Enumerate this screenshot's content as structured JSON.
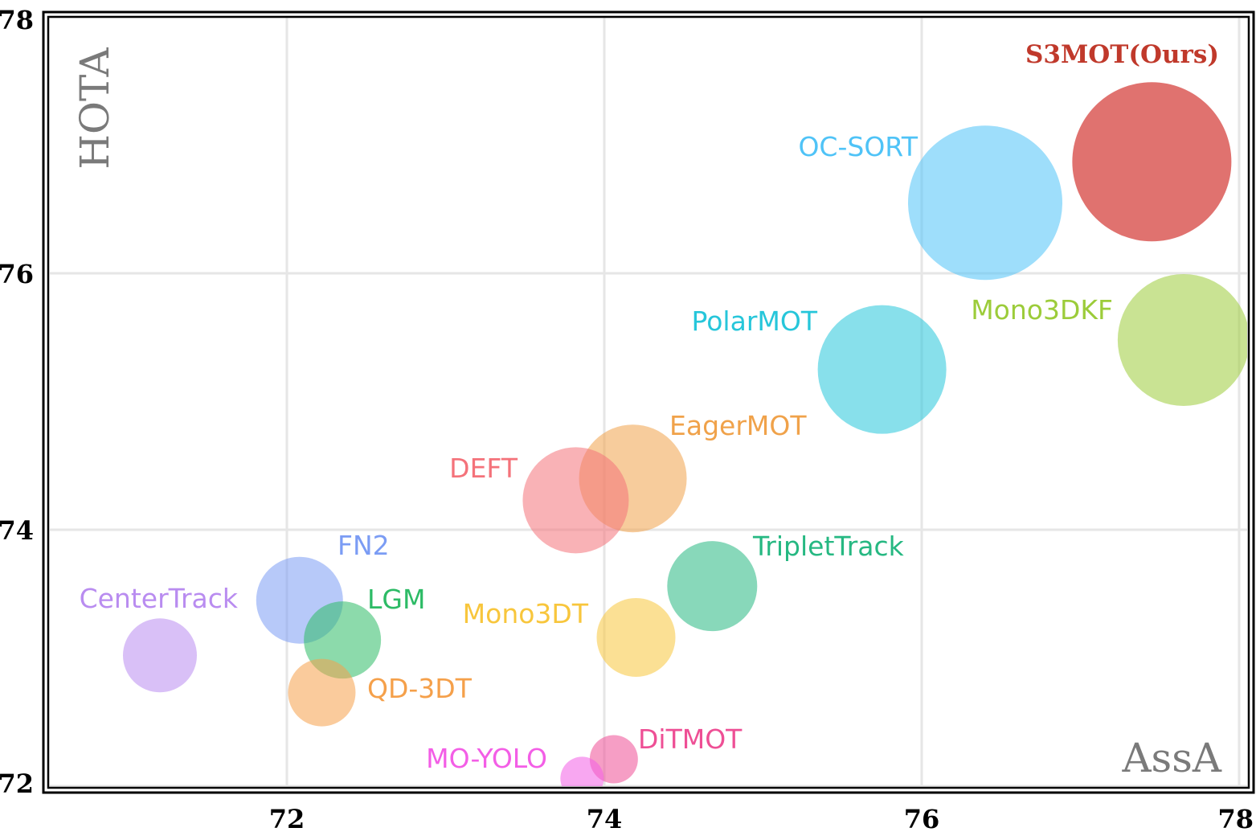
{
  "chart_data": {
    "type": "scatter",
    "title": "",
    "xlabel": "AssA",
    "ylabel": "HOTA",
    "xlim": [
      70.5,
      78
    ],
    "ylim": [
      72,
      78
    ],
    "xticks": [
      72,
      74,
      76,
      78
    ],
    "yticks": [
      72,
      74,
      76,
      78
    ],
    "grid": true,
    "legend": "none",
    "points": [
      {
        "name": "S3MOT(Ours)",
        "x": 77.45,
        "y": 76.87,
        "color": "#d9534f",
        "bold": true
      },
      {
        "name": "OC-SORT",
        "x": 76.4,
        "y": 76.55,
        "color": "#4fc3f7"
      },
      {
        "name": "Mono3DKF",
        "x": 77.65,
        "y": 75.48,
        "color": "#9ccc3a"
      },
      {
        "name": "PolarMOT",
        "x": 75.75,
        "y": 75.25,
        "color": "#26c6da"
      },
      {
        "name": "EagerMOT",
        "x": 74.18,
        "y": 74.4,
        "color": "#f0a24a"
      },
      {
        "name": "DEFT",
        "x": 73.82,
        "y": 74.23,
        "color": "#f4727a"
      },
      {
        "name": "TripletTrack",
        "x": 74.68,
        "y": 73.56,
        "color": "#26b882"
      },
      {
        "name": "FN2",
        "x": 72.08,
        "y": 73.45,
        "color": "#7b9cf4"
      },
      {
        "name": "LGM",
        "x": 72.35,
        "y": 73.14,
        "color": "#2dbb66"
      },
      {
        "name": "Mono3DT",
        "x": 74.2,
        "y": 73.16,
        "color": "#f8c63c"
      },
      {
        "name": "CenterTrack",
        "x": 71.2,
        "y": 73.02,
        "color": "#b98cf0"
      },
      {
        "name": "QD-3DT",
        "x": 72.22,
        "y": 72.73,
        "color": "#f5a04a"
      },
      {
        "name": "DiTMOT",
        "x": 74.06,
        "y": 72.21,
        "color": "#ee4f95"
      },
      {
        "name": "MO-YOLO",
        "x": 73.86,
        "y": 72.06,
        "color": "#f35ee6"
      }
    ]
  }
}
